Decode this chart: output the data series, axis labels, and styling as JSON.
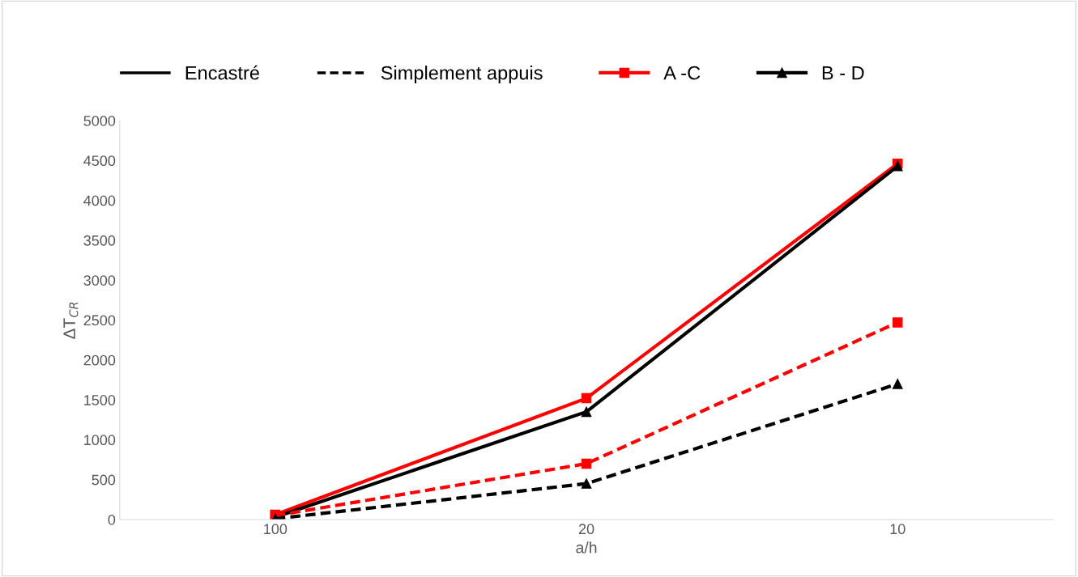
{
  "chart_data": {
    "type": "line",
    "xlabel": "a/h",
    "ylabel": "ΔT$_{CR}$",
    "categories": [
      "100",
      "20",
      "10"
    ],
    "ylim": [
      0,
      5000
    ],
    "yticks": [
      0,
      500,
      1000,
      1500,
      2000,
      2500,
      3000,
      3500,
      4000,
      4500,
      5000
    ],
    "grid": false,
    "legend": "top",
    "annotations": [
      "Encastré",
      "Simplement appuis"
    ],
    "series": [
      {
        "name": "A -C",
        "color": "#ff0000",
        "values": [
          60,
          1520,
          4460
        ],
        "marker": "square",
        "line_style": "solid"
      },
      {
        "name": "B - D",
        "color": "#000000",
        "values": [
          30,
          1350,
          4430
        ],
        "marker": "triangle",
        "line_style": "solid"
      },
      {
        "color": "#ff0000",
        "values": [
          50,
          700,
          2470
        ],
        "marker": "square",
        "line_style": "dashed"
      },
      {
        "color": "#000000",
        "values": [
          10,
          450,
          1700
        ],
        "marker": "triangle",
        "line_style": "dashed"
      }
    ]
  }
}
